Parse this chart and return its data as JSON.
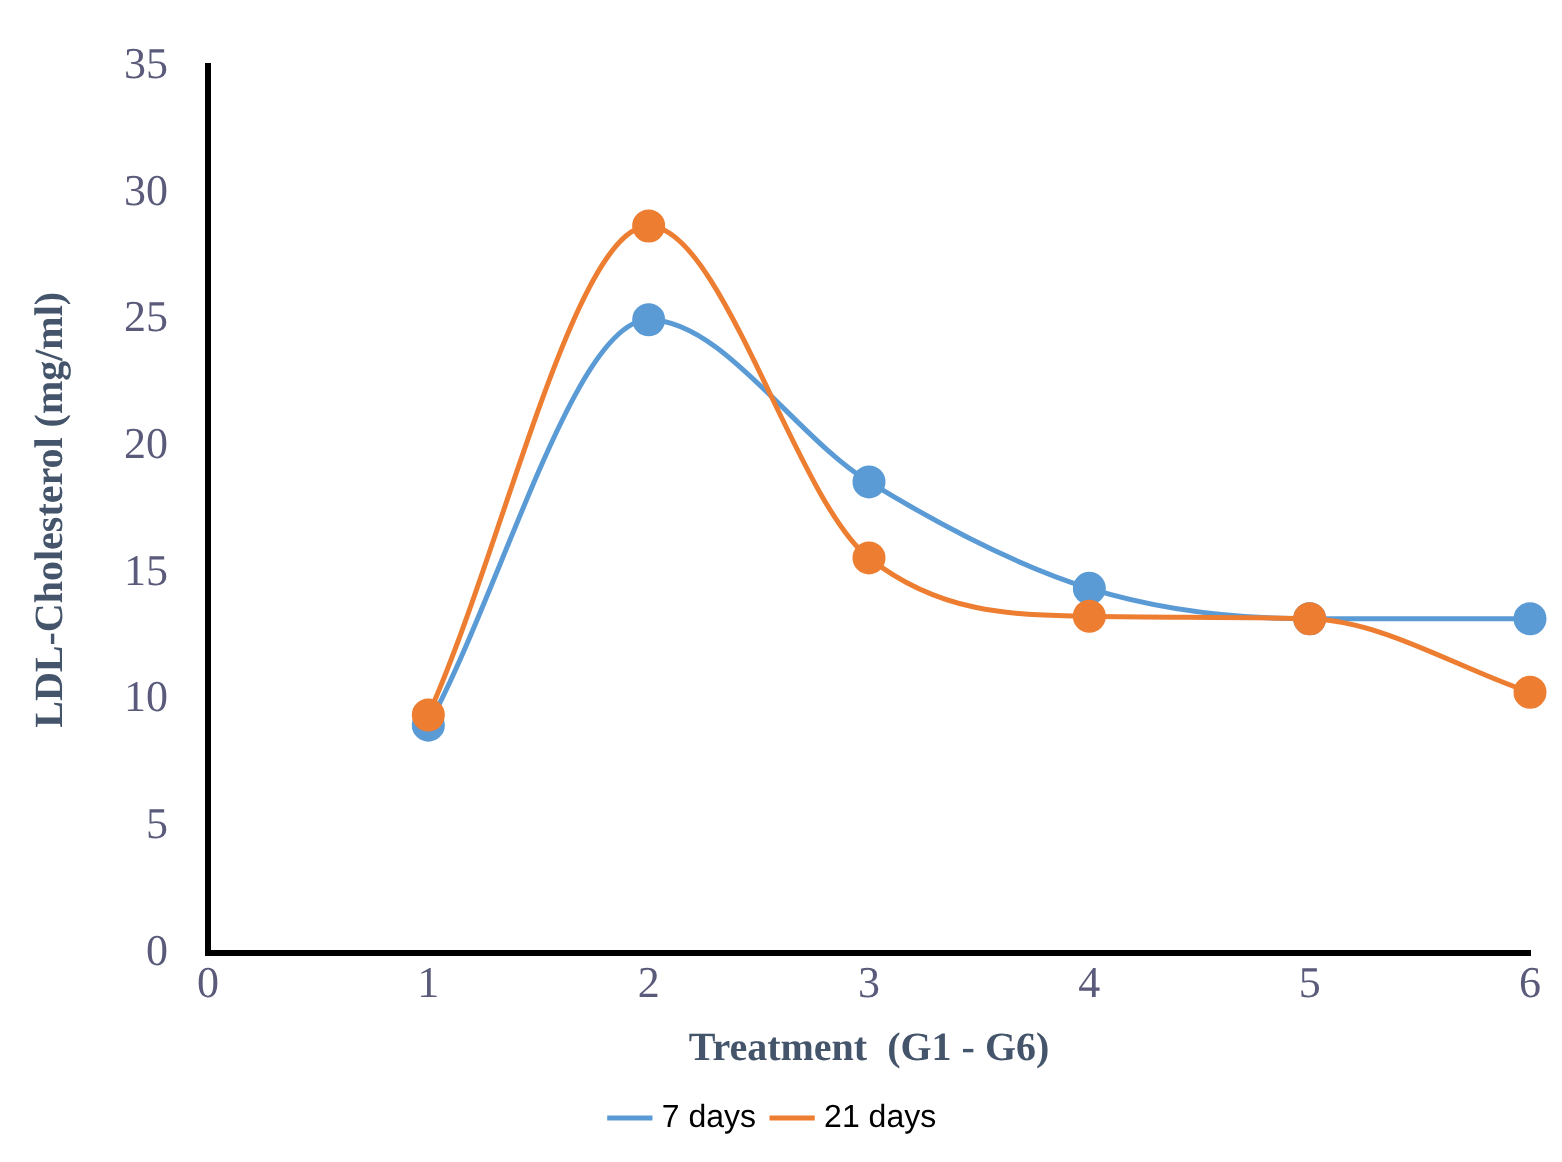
{
  "chart_data": {
    "type": "line",
    "xlabel": "Treatment  (G1 - G6)",
    "ylabel": "LDL-Cholesterol (mg/ml)",
    "x": [
      1,
      2,
      3,
      4,
      5,
      6
    ],
    "series": [
      {
        "name": "7 days",
        "color": "#5b9bd5",
        "values": [
          9.0,
          25.0,
          18.6,
          14.4,
          13.2,
          13.2
        ]
      },
      {
        "name": "21 days",
        "color": "#ed7d31",
        "values": [
          9.4,
          28.7,
          15.6,
          13.3,
          13.2,
          10.3
        ]
      }
    ],
    "xlim": [
      0,
      6
    ],
    "xticks": [
      0,
      1,
      2,
      3,
      4,
      5,
      6
    ],
    "ylim": [
      0,
      35
    ],
    "yticks": [
      0,
      5,
      10,
      15,
      20,
      25,
      30,
      35
    ],
    "grid": false,
    "legend": "bottom",
    "marker": "circle",
    "line_style": "solid"
  }
}
